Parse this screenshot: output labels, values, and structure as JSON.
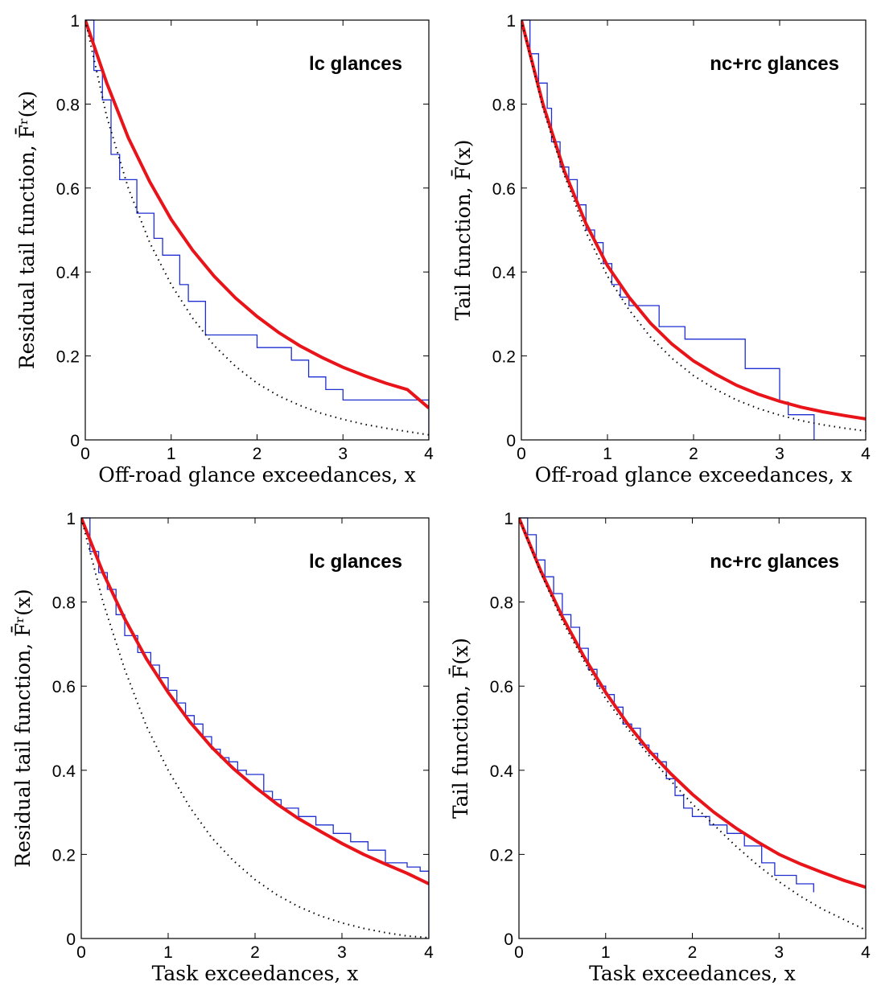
{
  "colors": {
    "empirical": "#1f2fd0",
    "fit": "#e8141a",
    "reference": "#000000"
  },
  "chart_data": [
    {
      "type": "line",
      "title": "lc glances",
      "xlabel": "Off-road glance exceedances, x",
      "ylabel": "Residual tail function, F̄ʳ(x)",
      "xlim": [
        0,
        4
      ],
      "ylim": [
        0,
        1
      ],
      "xticks": [
        "0",
        "1",
        "2",
        "3",
        "4"
      ],
      "yticks": [
        "0",
        "0.2",
        "0.4",
        "0.6",
        "0.8",
        "1"
      ],
      "grid": false,
      "series": [
        {
          "style": "step",
          "x": [
            0,
            0.1,
            0.1,
            0.2,
            0.2,
            0.3,
            0.3,
            0.4,
            0.4,
            0.6,
            0.6,
            0.8,
            0.8,
            0.9,
            0.9,
            1.1,
            1.1,
            1.2,
            1.2,
            1.4,
            1.4,
            2.0,
            2.0,
            2.4,
            2.4,
            2.6,
            2.6,
            2.8,
            2.8,
            3.0,
            3.0,
            4.0,
            4.0
          ],
          "y": [
            1.0,
            1.0,
            0.88,
            0.88,
            0.81,
            0.81,
            0.68,
            0.68,
            0.62,
            0.62,
            0.54,
            0.54,
            0.48,
            0.48,
            0.44,
            0.44,
            0.37,
            0.37,
            0.33,
            0.33,
            0.25,
            0.25,
            0.22,
            0.22,
            0.19,
            0.19,
            0.15,
            0.15,
            0.12,
            0.12,
            0.095,
            0.095,
            0.0
          ]
        },
        {
          "style": "solid",
          "x": [
            0,
            0.25,
            0.5,
            0.75,
            1.0,
            1.25,
            1.5,
            1.75,
            2.0,
            2.25,
            2.5,
            2.75,
            3.0,
            3.25,
            3.5,
            3.75,
            4.0
          ],
          "y": [
            1.0,
            0.85,
            0.72,
            0.615,
            0.525,
            0.452,
            0.39,
            0.338,
            0.294,
            0.256,
            0.224,
            0.197,
            0.173,
            0.153,
            0.135,
            0.12,
            0.076
          ]
        },
        {
          "style": "dotted",
          "x": [
            0,
            0.25,
            0.5,
            0.75,
            1.0,
            1.25,
            1.5,
            1.75,
            2.0,
            2.25,
            2.5,
            2.75,
            3.0,
            3.25,
            3.5,
            3.75,
            4.0
          ],
          "y": [
            1.0,
            0.77,
            0.6,
            0.47,
            0.37,
            0.29,
            0.225,
            0.175,
            0.135,
            0.105,
            0.082,
            0.063,
            0.049,
            0.037,
            0.028,
            0.02,
            0.012
          ]
        }
      ]
    },
    {
      "type": "line",
      "title": "nc+rc glances",
      "xlabel": "Off-road glance exceedances, x",
      "ylabel": "Tail function, F̄(x)",
      "xlim": [
        0,
        4
      ],
      "ylim": [
        0,
        1
      ],
      "xticks": [
        "0",
        "1",
        "2",
        "3",
        "4"
      ],
      "yticks": [
        "0",
        "0.2",
        "0.4",
        "0.6",
        "0.8",
        "1"
      ],
      "grid": false,
      "series": [
        {
          "style": "step",
          "x": [
            0,
            0.1,
            0.1,
            0.2,
            0.2,
            0.3,
            0.3,
            0.35,
            0.35,
            0.45,
            0.45,
            0.55,
            0.55,
            0.65,
            0.65,
            0.75,
            0.75,
            0.85,
            0.85,
            0.95,
            0.95,
            1.05,
            1.05,
            1.15,
            1.15,
            1.25,
            1.25,
            1.6,
            1.6,
            1.9,
            1.9,
            2.6,
            2.6,
            3.0,
            3.0,
            3.1,
            3.1,
            3.4,
            3.4
          ],
          "y": [
            1.0,
            1.0,
            0.92,
            0.92,
            0.85,
            0.85,
            0.79,
            0.79,
            0.71,
            0.71,
            0.65,
            0.65,
            0.62,
            0.62,
            0.56,
            0.56,
            0.5,
            0.5,
            0.47,
            0.47,
            0.42,
            0.42,
            0.37,
            0.37,
            0.34,
            0.34,
            0.32,
            0.32,
            0.27,
            0.27,
            0.24,
            0.24,
            0.17,
            0.17,
            0.09,
            0.09,
            0.06,
            0.06,
            0.0
          ]
        },
        {
          "style": "solid",
          "x": [
            0,
            0.25,
            0.5,
            0.75,
            1.0,
            1.25,
            1.5,
            1.75,
            2.0,
            2.25,
            2.5,
            2.75,
            3.0,
            3.25,
            3.5,
            3.75,
            4.0
          ],
          "y": [
            1.0,
            0.8,
            0.64,
            0.515,
            0.415,
            0.34,
            0.278,
            0.228,
            0.188,
            0.157,
            0.13,
            0.109,
            0.092,
            0.078,
            0.067,
            0.058,
            0.05
          ]
        },
        {
          "style": "dotted",
          "x": [
            0,
            0.25,
            0.5,
            0.75,
            1.0,
            1.25,
            1.5,
            1.75,
            2.0,
            2.25,
            2.5,
            2.75,
            3.0,
            3.25,
            3.5,
            3.75,
            4.0
          ],
          "y": [
            1.0,
            0.79,
            0.63,
            0.495,
            0.39,
            0.31,
            0.245,
            0.194,
            0.153,
            0.121,
            0.095,
            0.075,
            0.059,
            0.046,
            0.036,
            0.028,
            0.021
          ]
        }
      ]
    },
    {
      "type": "line",
      "title": "lc glances",
      "xlabel": "Task exceedances, x",
      "ylabel": "Residual tail function, F̄ʳ(x)",
      "xlim": [
        0,
        4
      ],
      "ylim": [
        0,
        1
      ],
      "xticks": [
        "0",
        "1",
        "2",
        "3",
        "4"
      ],
      "yticks": [
        "0",
        "0.2",
        "0.4",
        "0.6",
        "0.8",
        "1"
      ],
      "grid": false,
      "series": [
        {
          "style": "step",
          "x": [
            0,
            0.1,
            0.1,
            0.2,
            0.2,
            0.3,
            0.3,
            0.4,
            0.4,
            0.5,
            0.5,
            0.65,
            0.65,
            0.8,
            0.8,
            0.9,
            0.9,
            1.0,
            1.0,
            1.1,
            1.1,
            1.2,
            1.2,
            1.3,
            1.3,
            1.4,
            1.4,
            1.5,
            1.5,
            1.6,
            1.6,
            1.7,
            1.7,
            1.8,
            1.8,
            1.9,
            1.9,
            2.1,
            2.1,
            2.2,
            2.2,
            2.3,
            2.3,
            2.5,
            2.5,
            2.7,
            2.7,
            2.9,
            2.9,
            3.1,
            3.1,
            3.3,
            3.3,
            3.5,
            3.5,
            3.75,
            3.75,
            3.9,
            3.9,
            4.0,
            4.0
          ],
          "y": [
            1.0,
            1.0,
            0.92,
            0.92,
            0.87,
            0.87,
            0.83,
            0.83,
            0.77,
            0.77,
            0.72,
            0.72,
            0.68,
            0.68,
            0.65,
            0.65,
            0.62,
            0.62,
            0.59,
            0.59,
            0.56,
            0.56,
            0.53,
            0.53,
            0.51,
            0.51,
            0.48,
            0.48,
            0.45,
            0.45,
            0.43,
            0.43,
            0.42,
            0.42,
            0.4,
            0.4,
            0.39,
            0.39,
            0.35,
            0.35,
            0.33,
            0.33,
            0.31,
            0.31,
            0.29,
            0.29,
            0.27,
            0.27,
            0.25,
            0.25,
            0.23,
            0.23,
            0.21,
            0.21,
            0.18,
            0.18,
            0.17,
            0.17,
            0.16,
            0.16,
            0.0
          ]
        },
        {
          "style": "solid",
          "x": [
            0,
            0.25,
            0.5,
            0.75,
            1.0,
            1.25,
            1.5,
            1.75,
            2.0,
            2.25,
            2.5,
            2.75,
            3.0,
            3.25,
            3.5,
            3.75,
            4.0
          ],
          "y": [
            1.0,
            0.87,
            0.76,
            0.665,
            0.585,
            0.515,
            0.455,
            0.404,
            0.36,
            0.32,
            0.285,
            0.255,
            0.226,
            0.2,
            0.177,
            0.155,
            0.13
          ]
        },
        {
          "style": "dotted",
          "x": [
            0,
            0.25,
            0.5,
            0.75,
            1.0,
            1.25,
            1.5,
            1.75,
            2.0,
            2.25,
            2.5,
            2.75,
            3.0,
            3.25,
            3.5,
            3.75,
            4.0
          ],
          "y": [
            1.0,
            0.8,
            0.64,
            0.505,
            0.4,
            0.312,
            0.24,
            0.185,
            0.14,
            0.104,
            0.076,
            0.054,
            0.037,
            0.024,
            0.014,
            0.006,
            0.002
          ]
        }
      ]
    },
    {
      "type": "line",
      "title": "nc+rc glances",
      "xlabel": "Task exceedances, x",
      "ylabel": "Tail function, F̄(x)",
      "xlim": [
        0,
        4
      ],
      "ylim": [
        0,
        1
      ],
      "xticks": [
        "0",
        "1",
        "2",
        "3",
        "4"
      ],
      "yticks": [
        "0",
        "0.2",
        "0.4",
        "0.6",
        "0.8",
        "1"
      ],
      "grid": false,
      "series": [
        {
          "style": "step",
          "x": [
            0,
            0.1,
            0.1,
            0.2,
            0.2,
            0.3,
            0.3,
            0.4,
            0.4,
            0.5,
            0.5,
            0.6,
            0.6,
            0.7,
            0.7,
            0.8,
            0.8,
            0.9,
            0.9,
            1.0,
            1.0,
            1.1,
            1.1,
            1.2,
            1.2,
            1.3,
            1.3,
            1.4,
            1.4,
            1.5,
            1.5,
            1.6,
            1.6,
            1.7,
            1.7,
            1.8,
            1.8,
            1.9,
            1.9,
            2.0,
            2.0,
            2.2,
            2.2,
            2.4,
            2.4,
            2.6,
            2.6,
            2.8,
            2.8,
            2.95,
            2.95,
            3.2,
            3.2,
            3.4,
            3.4
          ],
          "y": [
            1.0,
            1.0,
            0.96,
            0.96,
            0.9,
            0.9,
            0.86,
            0.86,
            0.82,
            0.82,
            0.77,
            0.77,
            0.74,
            0.74,
            0.69,
            0.69,
            0.64,
            0.64,
            0.6,
            0.6,
            0.58,
            0.58,
            0.55,
            0.55,
            0.51,
            0.51,
            0.5,
            0.5,
            0.46,
            0.46,
            0.44,
            0.44,
            0.42,
            0.42,
            0.38,
            0.38,
            0.34,
            0.34,
            0.31,
            0.31,
            0.29,
            0.29,
            0.27,
            0.27,
            0.25,
            0.25,
            0.22,
            0.22,
            0.18,
            0.18,
            0.15,
            0.15,
            0.13,
            0.13,
            0.11
          ]
        },
        {
          "style": "solid",
          "x": [
            0,
            0.25,
            0.5,
            0.75,
            1.0,
            1.25,
            1.5,
            1.75,
            2.0,
            2.25,
            2.5,
            2.75,
            3.0,
            3.25,
            3.5,
            3.75,
            4.0
          ],
          "y": [
            1.0,
            0.875,
            0.765,
            0.67,
            0.585,
            0.511,
            0.447,
            0.392,
            0.343,
            0.3,
            0.263,
            0.23,
            0.2,
            0.177,
            0.157,
            0.138,
            0.122
          ]
        },
        {
          "style": "dotted",
          "x": [
            0,
            0.25,
            0.5,
            0.75,
            1.0,
            1.25,
            1.5,
            1.75,
            2.0,
            2.25,
            2.5,
            2.75,
            3.0,
            3.25,
            3.5,
            3.75,
            4.0
          ],
          "y": [
            1.0,
            0.87,
            0.755,
            0.66,
            0.57,
            0.5,
            0.435,
            0.375,
            0.32,
            0.27,
            0.22,
            0.175,
            0.135,
            0.1,
            0.07,
            0.045,
            0.02
          ]
        }
      ]
    }
  ]
}
